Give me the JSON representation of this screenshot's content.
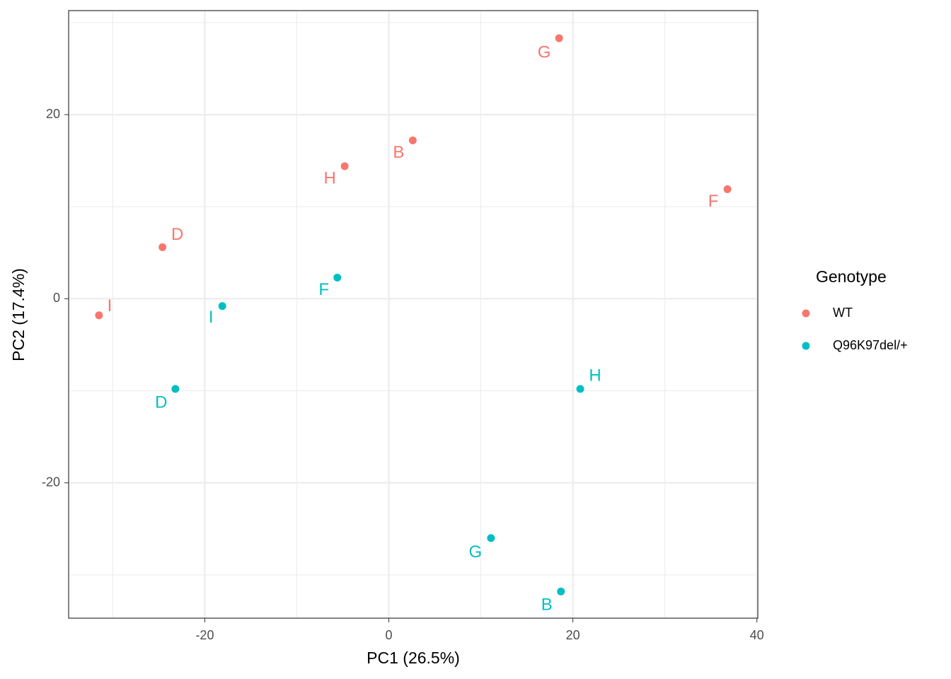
{
  "chart_data": {
    "type": "scatter",
    "x_label": "PC1 (26.5%)",
    "y_label": "PC2 (17.4%)",
    "xlim": [
      -34.8,
      40.1
    ],
    "ylim": [
      -34.7,
      31.3
    ],
    "xticks": [
      -20,
      0,
      20,
      40
    ],
    "yticks": [
      -20,
      0,
      20
    ],
    "grid": true,
    "legend_title": "Genotype",
    "legend_position": "right",
    "series": [
      {
        "name": "WT",
        "color": "#f8766d",
        "labels": [
          "G",
          "B",
          "H",
          "F",
          "D",
          "I"
        ],
        "x": [
          18.5,
          2.6,
          -4.8,
          36.8,
          -24.6,
          -31.5
        ],
        "values": [
          28.3,
          17.2,
          14.4,
          11.9,
          5.6,
          -1.8
        ]
      },
      {
        "name": "Q96K97del/+",
        "color": "#00bfc4",
        "labels": [
          "F",
          "I",
          "D",
          "H",
          "G",
          "B"
        ],
        "x": [
          -5.6,
          -18.1,
          -23.2,
          20.8,
          11.1,
          18.7
        ],
        "values": [
          2.3,
          -0.8,
          -9.8,
          -9.8,
          -26.0,
          -31.8
        ]
      }
    ]
  }
}
